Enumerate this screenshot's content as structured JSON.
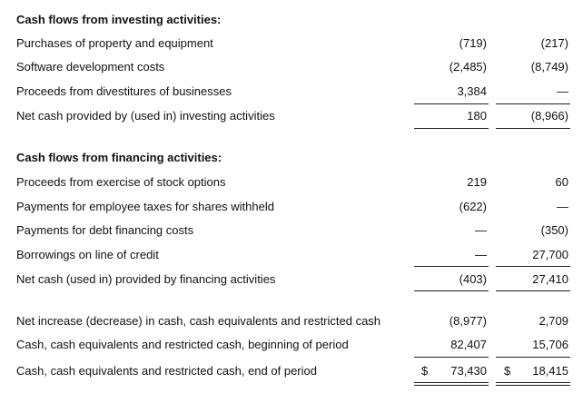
{
  "investing": {
    "header": "Cash flows from investing activities:",
    "rows": [
      {
        "label": "Purchases of property and equipment",
        "v1": "(719)",
        "v2": "(217)"
      },
      {
        "label": "Software development costs",
        "v1": "(2,485)",
        "v2": "(8,749)"
      },
      {
        "label": "Proceeds from divestitures of businesses",
        "v1": "3,384",
        "v2": "—"
      },
      {
        "label": "Net cash provided by (used in) investing activities",
        "v1": "180",
        "v2": "(8,966)"
      }
    ]
  },
  "financing": {
    "header": "Cash flows from financing activities:",
    "rows": [
      {
        "label": "Proceeds from exercise of stock options",
        "v1": "219",
        "v2": "60"
      },
      {
        "label": "Payments for employee taxes for shares withheld",
        "v1": "(622)",
        "v2": "—"
      },
      {
        "label": "Payments for debt financing costs",
        "v1": "—",
        "v2": "(350)"
      },
      {
        "label": "Borrowings on line of credit",
        "v1": "—",
        "v2": "27,700"
      },
      {
        "label": "Net cash (used in) provided by financing activities",
        "v1": "(403)",
        "v2": "27,410"
      }
    ]
  },
  "summary": {
    "rows": [
      {
        "label": "Net increase (decrease) in cash, cash equivalents and restricted cash",
        "v1": "(8,977)",
        "v2": "2,709"
      },
      {
        "label": "Cash, cash equivalents and restricted cash, beginning of period",
        "v1": "82,407",
        "v2": "15,706"
      },
      {
        "label": "Cash, cash equivalents and restricted cash, end of period",
        "v1": "73,430",
        "v2": "18,415",
        "currency": "$"
      }
    ]
  }
}
